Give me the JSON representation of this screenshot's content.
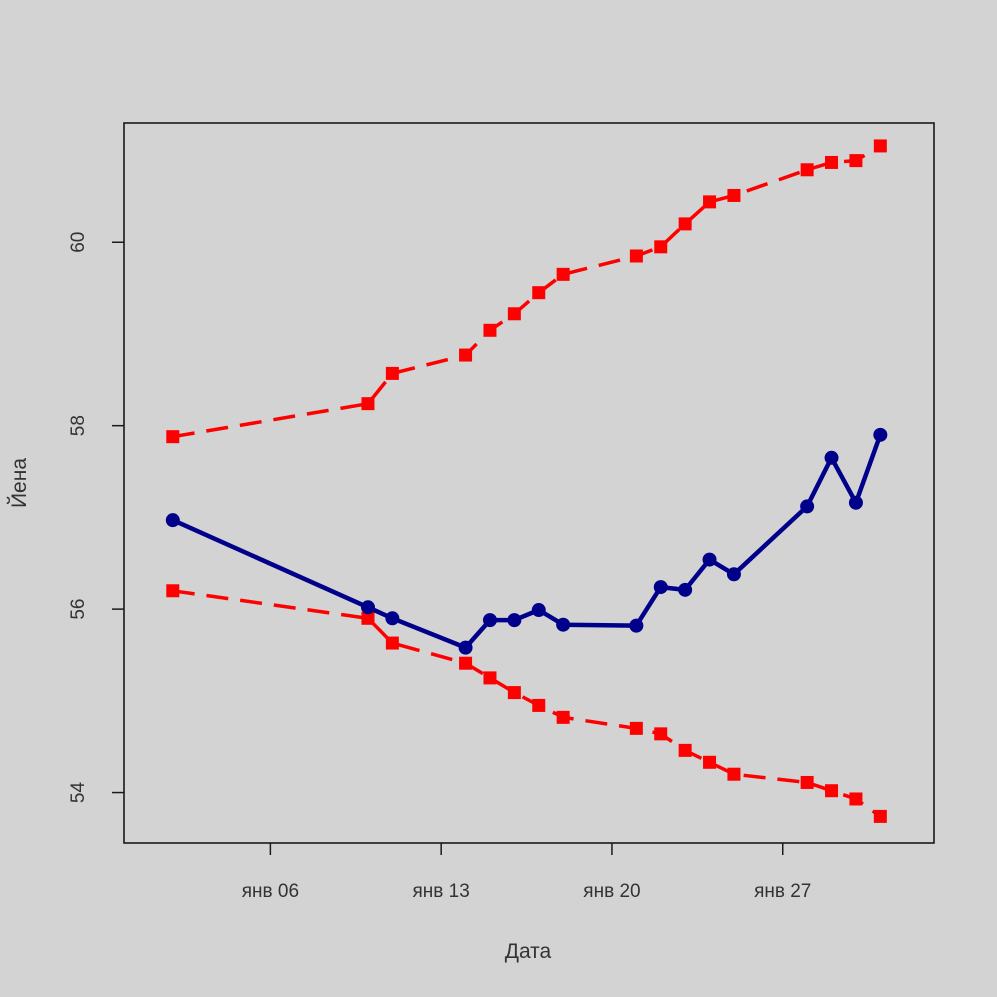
{
  "chart_data": {
    "type": "line",
    "title": "",
    "xlabel": "Дата",
    "ylabel": "Йена",
    "x_tick_labels": [
      "янв 06",
      "янв 13",
      "янв 20",
      "янв 27"
    ],
    "x_tick_days": [
      6,
      13,
      20,
      27
    ],
    "y_ticks": [
      54,
      56,
      58,
      60
    ],
    "xlim_days": [
      0.0,
      33.2
    ],
    "ylim": [
      53.45,
      61.3
    ],
    "grid": false,
    "x": [
      "01-02",
      "01-10",
      "01-11",
      "01-14",
      "01-15",
      "01-16",
      "01-17",
      "01-18",
      "01-21",
      "01-22",
      "01-23",
      "01-24",
      "01-25",
      "01-28",
      "01-29",
      "01-30",
      "01-31"
    ],
    "x_days": [
      2,
      10,
      11,
      14,
      15,
      16,
      17,
      18,
      21,
      22,
      23,
      24,
      25,
      28,
      29,
      30,
      31
    ],
    "series": [
      {
        "color": "#00008b",
        "style": "solid",
        "marker": "circle",
        "values": [
          56.97,
          56.02,
          55.9,
          55.58,
          55.88,
          55.88,
          55.99,
          55.83,
          55.82,
          56.24,
          56.21,
          56.54,
          56.38,
          57.12,
          57.65,
          57.16,
          57.9
        ]
      },
      {
        "color": "#ff0000",
        "style": "dashed",
        "marker": "square",
        "values": [
          57.88,
          58.24,
          58.57,
          58.77,
          59.04,
          59.22,
          59.45,
          59.65,
          59.85,
          59.95,
          60.2,
          60.44,
          60.51,
          60.79,
          60.87,
          60.89,
          61.05
        ]
      },
      {
        "color": "#ff0000",
        "style": "dashed",
        "marker": "square",
        "values": [
          56.2,
          55.9,
          55.63,
          55.41,
          55.25,
          55.09,
          54.95,
          54.82,
          54.7,
          54.64,
          54.46,
          54.33,
          54.2,
          54.11,
          54.02,
          53.93,
          53.74
        ]
      }
    ]
  }
}
